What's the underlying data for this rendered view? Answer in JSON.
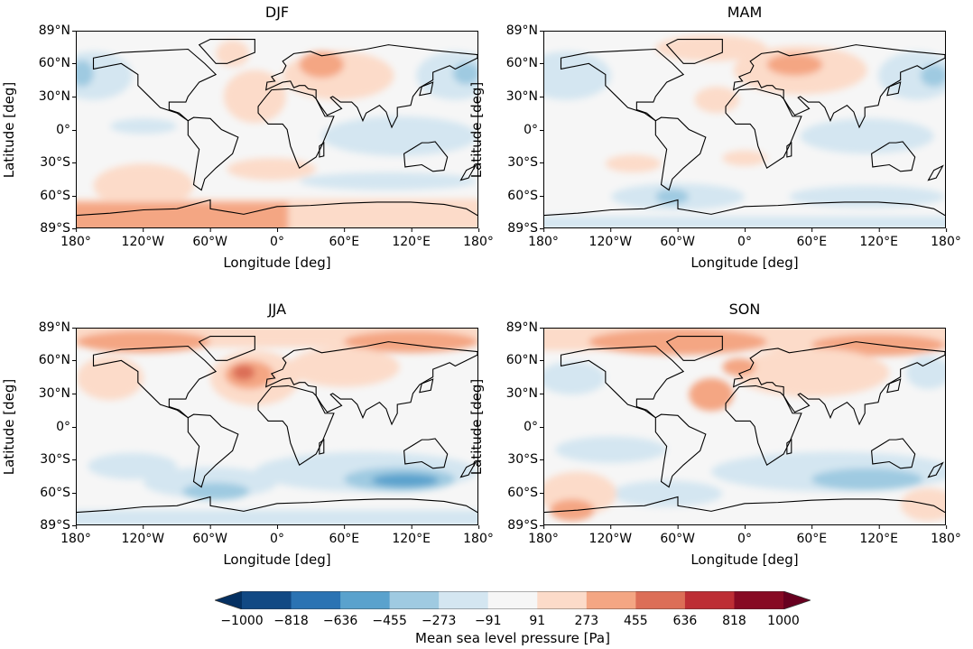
{
  "chart_data": {
    "type": "heatmap",
    "projection": "PlateCarree",
    "panels": [
      {
        "title": "DJF"
      },
      {
        "title": "MAM"
      },
      {
        "title": "JJA"
      },
      {
        "title": "SON"
      }
    ],
    "xlabel": "Longitude [deg]",
    "ylabel": "Latitude [deg]",
    "xticks": [
      "180°",
      "120°W",
      "60°W",
      "0°",
      "60°E",
      "120°E",
      "180°"
    ],
    "yticks": [
      "89°N",
      "60°N",
      "30°N",
      "0°",
      "30°S",
      "60°S",
      "89°S"
    ],
    "xlim": [
      -180,
      180
    ],
    "ylim": [
      -89,
      89
    ],
    "colorbar": {
      "label": "Mean sea level pressure [Pa]",
      "ticks": [
        "−1000",
        "−818",
        "−636",
        "−455",
        "−273",
        "−91",
        "91",
        "273",
        "455",
        "636",
        "818",
        "1000"
      ],
      "range": [
        -1000,
        1000
      ],
      "extend": "both",
      "colors": [
        "#053061",
        "#124984",
        "#2b73b3",
        "#5aa2cd",
        "#9fcae1",
        "#d4e6f1",
        "#f6f6f6",
        "#fcdbc9",
        "#f4a683",
        "#dc6e57",
        "#bd2e35",
        "#870a24",
        "#67001f"
      ]
    }
  }
}
